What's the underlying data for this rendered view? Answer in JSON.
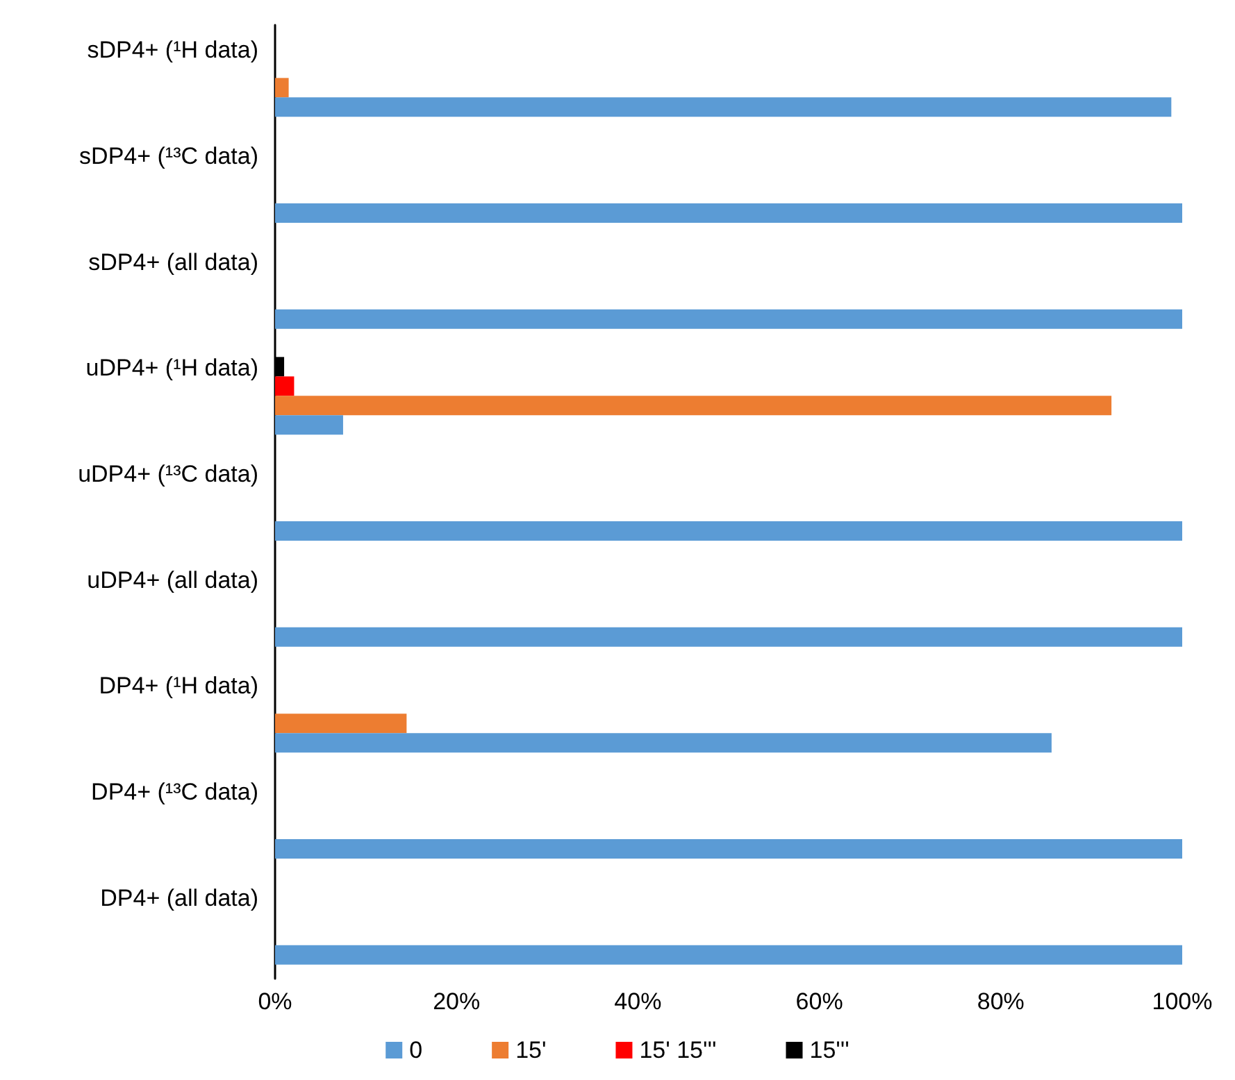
{
  "chart_data": {
    "type": "bar",
    "orientation": "horizontal",
    "categories": [
      "sDP4+ (¹H data)",
      "sDP4+ (¹³C data)",
      "sDP4+ (all data)",
      "uDP4+ (¹H data)",
      "uDP4+ (¹³C data)",
      "uDP4+ (all data)",
      "DP4+ (¹H data)",
      "DP4+ (¹³C data)",
      "DP4+ (all data)"
    ],
    "series": [
      {
        "name": "0",
        "color": "#5b9bd5",
        "values": [
          98.8,
          100,
          100,
          7.5,
          100,
          100,
          85.6,
          100,
          100
        ]
      },
      {
        "name": "15'",
        "color": "#ed7d31",
        "values": [
          1.5,
          null,
          null,
          92.2,
          null,
          null,
          14.5,
          null,
          null
        ]
      },
      {
        "name": "15' 15'''",
        "color": "#ff0000",
        "values": [
          null,
          null,
          null,
          2.1,
          null,
          null,
          null,
          null,
          null
        ]
      },
      {
        "name": "15'''",
        "color": "#000000",
        "values": [
          null,
          null,
          null,
          1.0,
          null,
          null,
          null,
          null,
          null
        ]
      }
    ],
    "xlim": [
      0,
      100
    ],
    "xticks": [
      {
        "value": 0,
        "label": "0%"
      },
      {
        "value": 20,
        "label": "20%"
      },
      {
        "value": 40,
        "label": "40%"
      },
      {
        "value": 60,
        "label": "60%"
      },
      {
        "value": 80,
        "label": "80%"
      },
      {
        "value": 100,
        "label": "100%"
      }
    ],
    "grid": false,
    "legend": "bottom"
  }
}
